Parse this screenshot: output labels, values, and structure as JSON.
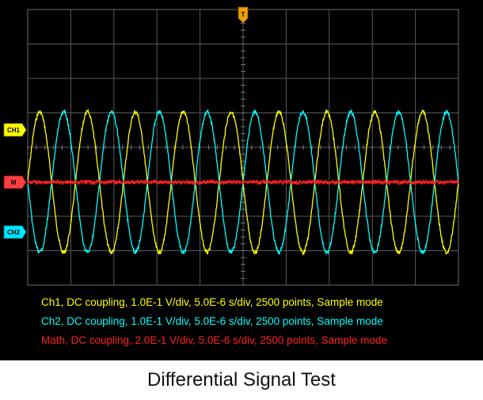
{
  "caption": "Differential Signal Test",
  "markers": {
    "trigger": "T",
    "ch1": "CH1",
    "math": "M",
    "ch2": "CH2"
  },
  "info": [
    {
      "text": "Ch1, DC coupling, 1.0E-1 V/div, 5.0E-6 s/div, 2500 points, Sample mode",
      "color": "#ffff00"
    },
    {
      "text": "Ch2, DC coupling, 1.0E-1 V/div, 5.0E-6 s/div, 2500 points, Sample mode",
      "color": "#00ffff"
    },
    {
      "text": "Math, DC coupling, 2.0E-1 V/div, 5.0E-6 s/div, 2500 points, Sample mode",
      "color": "#ff2020"
    }
  ],
  "chart_data": {
    "type": "line",
    "title": "Differential Signal Test",
    "grid": true,
    "x_divisions": 10,
    "y_divisions": 8,
    "xlim_div": [
      0,
      10
    ],
    "ylim_div": [
      -4,
      4
    ],
    "series": [
      {
        "name": "Ch1",
        "color": "#ffff00",
        "amplitude_div": 2,
        "cycles": 9,
        "phase": "sin",
        "offset_div": 1
      },
      {
        "name": "Ch2",
        "color": "#00ffff",
        "amplitude_div": 2,
        "cycles": 9,
        "phase": "-sin",
        "offset_div": 1
      },
      {
        "name": "Math",
        "color": "#ff2020",
        "amplitude_div": 0,
        "offset_div": 0
      }
    ]
  }
}
